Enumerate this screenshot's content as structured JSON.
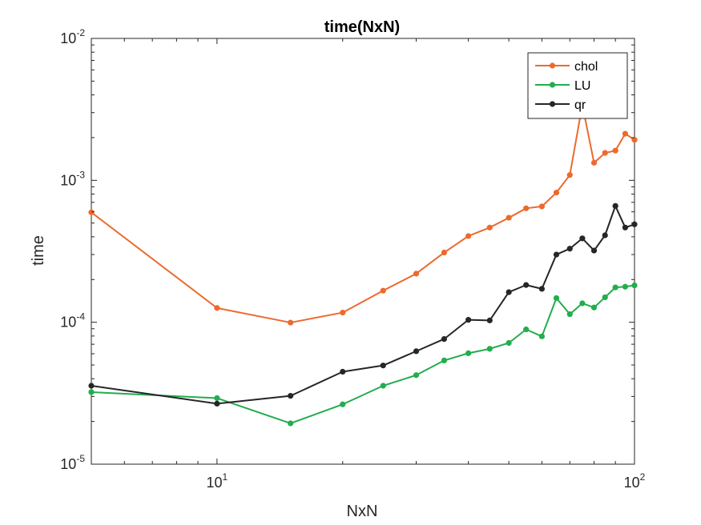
{
  "chart_data": {
    "type": "line",
    "title": "time(NxN)",
    "xlabel": "NxN",
    "ylabel": "time",
    "xscale": "log",
    "yscale": "log",
    "xlim": [
      5,
      100
    ],
    "ylim": [
      1e-05,
      0.01
    ],
    "x_ticks": [
      {
        "value": 10,
        "base": "10",
        "exp": "1"
      },
      {
        "value": 100,
        "base": "10",
        "exp": "2"
      }
    ],
    "y_ticks": [
      {
        "value": 1e-05,
        "base": "10",
        "exp": "-5"
      },
      {
        "value": 0.0001,
        "base": "10",
        "exp": "-4"
      },
      {
        "value": 0.001,
        "base": "10",
        "exp": "-3"
      },
      {
        "value": 0.01,
        "base": "10",
        "exp": "-2"
      }
    ],
    "grid": false,
    "legend": "top-right",
    "x": [
      5,
      10,
      15,
      20,
      25,
      30,
      35,
      40,
      45,
      50,
      55,
      60,
      65,
      70,
      75,
      80,
      85,
      90,
      95,
      100
    ],
    "series": [
      {
        "name": "chol",
        "color": "#EC6A2E",
        "values": [
          0.000595,
          0.000126,
          9.95e-05,
          0.000117,
          0.000167,
          0.00022,
          0.00031,
          0.000405,
          0.000465,
          0.000545,
          0.000635,
          0.000655,
          0.00082,
          0.00109,
          0.0034,
          0.00133,
          0.00156,
          0.00162,
          0.00213,
          0.00193
        ]
      },
      {
        "name": "LU",
        "color": "#22AD4E",
        "values": [
          3.22e-05,
          2.92e-05,
          1.94e-05,
          2.64e-05,
          3.57e-05,
          4.24e-05,
          5.38e-05,
          6.05e-05,
          6.5e-05,
          7.15e-05,
          8.9e-05,
          7.95e-05,
          0.000148,
          0.000114,
          0.000136,
          0.000127,
          0.00015,
          0.000176,
          0.000178,
          0.000182
        ]
      },
      {
        "name": "qr",
        "color": "#262626",
        "values": [
          3.57e-05,
          2.67e-05,
          3.03e-05,
          4.48e-05,
          4.96e-05,
          6.25e-05,
          7.62e-05,
          0.000104,
          0.000103,
          0.000163,
          0.000183,
          0.000172,
          0.0003,
          0.00033,
          0.00039,
          0.00032,
          0.00041,
          0.00066,
          0.000465,
          0.00049
        ]
      }
    ]
  }
}
